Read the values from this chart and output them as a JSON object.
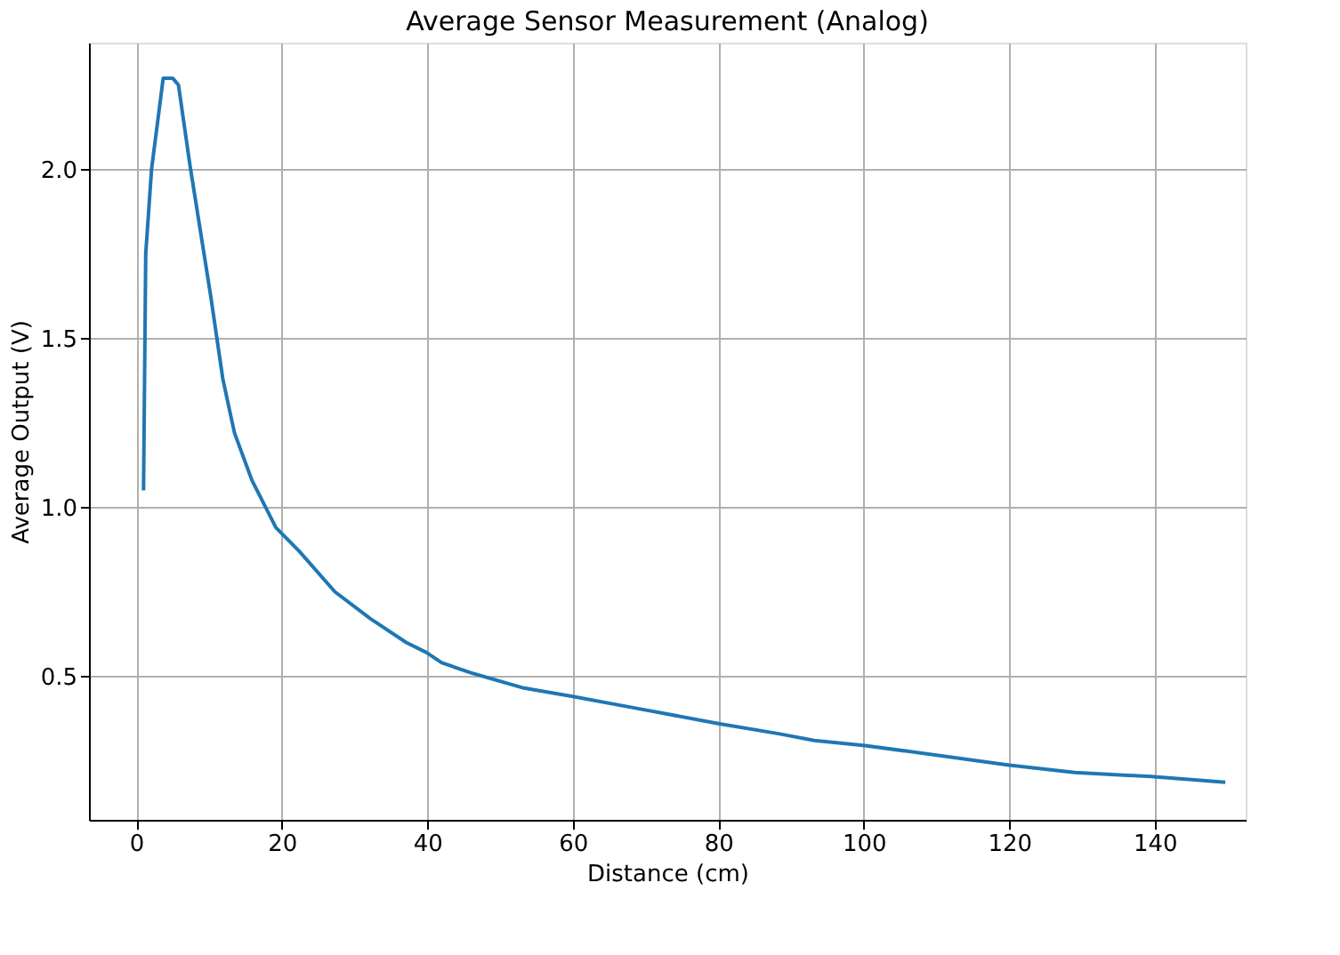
{
  "chart_data": {
    "type": "line",
    "title": "Average Sensor Measurement (Analog)",
    "xlabel": "Distance (cm)",
    "ylabel": "Average Output (V)",
    "xlim": [
      -6.5,
      152.5
    ],
    "ylim": [
      0.075,
      2.375
    ],
    "xticks": [
      0,
      20,
      40,
      60,
      80,
      100,
      120,
      140
    ],
    "yticks": [
      0.5,
      {
        "value": 1,
        "label": "1.0"
      },
      1.5,
      {
        "value": 2,
        "label": "2.0"
      }
    ],
    "grid": true,
    "line_style": "solid",
    "marker": "none",
    "series": [
      {
        "color": "#1f77b4",
        "x": [
          1,
          1.3,
          2.1,
          3.7,
          5.0,
          5.8,
          7.4,
          10.2,
          11.9,
          13.5,
          15.9,
          19.2,
          22.4,
          27.3,
          32.2,
          37.1,
          39.9,
          42,
          46,
          53.3,
          60,
          68.8,
          80,
          88.3,
          93.2,
          100.2,
          120,
          129,
          139.5,
          149.7
        ],
        "values": [
          1.05,
          1.75,
          2.0,
          2.27,
          2.27,
          2.25,
          2.01,
          1.63,
          1.38,
          1.22,
          1.08,
          0.94,
          0.87,
          0.75,
          0.67,
          0.6,
          0.57,
          0.54,
          0.51,
          0.465,
          0.44,
          0.405,
          0.36,
          0.33,
          0.31,
          0.295,
          0.237,
          0.215,
          0.203,
          0.186
        ]
      }
    ]
  }
}
